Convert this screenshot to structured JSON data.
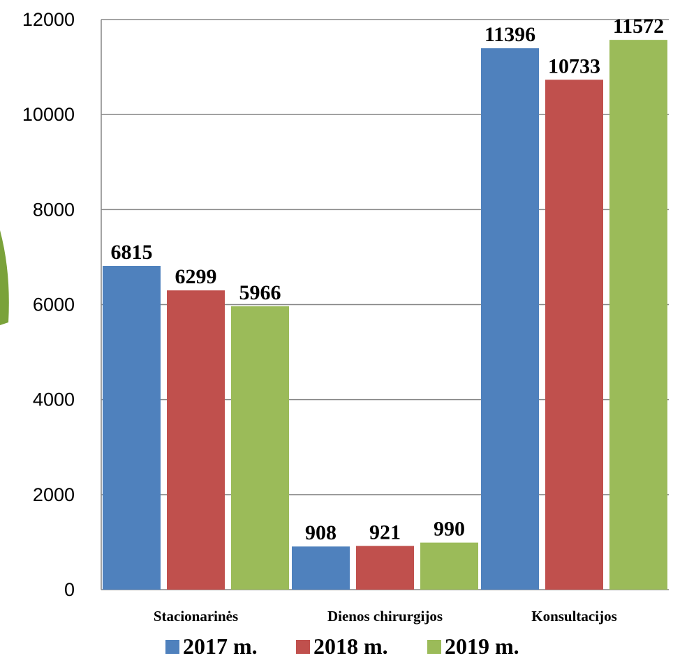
{
  "chart_data": {
    "type": "bar",
    "categories": [
      "Stacionarinės",
      "Dienos chirurgijos",
      "Konsultacijos"
    ],
    "series": [
      {
        "name": "2017 m.",
        "color": "#4f81bd",
        "values": [
          6815,
          908,
          11396
        ]
      },
      {
        "name": "2018 m.",
        "color": "#c0504d",
        "values": [
          6299,
          921,
          10733
        ]
      },
      {
        "name": "2019 m.",
        "color": "#9bbb59",
        "values": [
          5966,
          990,
          11572
        ]
      }
    ],
    "yticks": [
      "0",
      "2000",
      "4000",
      "6000",
      "8000",
      "10000",
      "12000"
    ],
    "ylim": [
      0,
      12000
    ],
    "grid": true,
    "legend": "bottom",
    "title": "",
    "xlabel": "",
    "ylabel": ""
  }
}
